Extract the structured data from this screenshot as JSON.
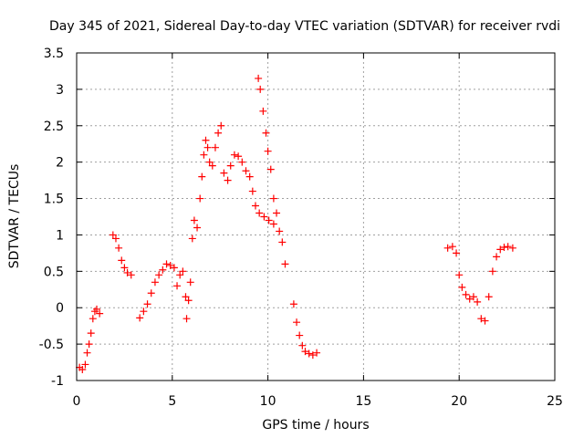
{
  "chart_data": {
    "type": "scatter",
    "title": "Day 345 of 2021, Sidereal Day-to-day VTEC variation (SDTVAR) for receiver rvdi",
    "xlabel": "GPS time / hours",
    "ylabel": "SDTVAR / TECUs",
    "xlim": [
      0,
      25
    ],
    "ylim": [
      -1,
      3.5
    ],
    "x_ticks": [
      0,
      5,
      10,
      15,
      20,
      25
    ],
    "x_tick_labels": [
      "0",
      "5",
      "10",
      "15",
      "20",
      "25"
    ],
    "y_ticks": [
      -1,
      -0.5,
      0,
      0.5,
      1,
      1.5,
      2,
      2.5,
      3,
      3.5
    ],
    "y_tick_labels": [
      "-1",
      "-0.5",
      "0",
      "0.5",
      "1",
      "1.5",
      "2",
      "2.5",
      "3",
      "3.5"
    ],
    "grid": true,
    "marker": "+",
    "color": "#ff0000",
    "series": [
      {
        "name": "rvdi SDTVAR",
        "points": [
          [
            0.15,
            -0.82
          ],
          [
            0.3,
            -0.85
          ],
          [
            0.45,
            -0.78
          ],
          [
            0.55,
            -0.62
          ],
          [
            0.65,
            -0.5
          ],
          [
            0.75,
            -0.35
          ],
          [
            0.85,
            -0.15
          ],
          [
            0.95,
            -0.05
          ],
          [
            1.05,
            -0.02
          ],
          [
            1.2,
            -0.08
          ],
          [
            1.9,
            1.0
          ],
          [
            2.05,
            0.95
          ],
          [
            2.2,
            0.82
          ],
          [
            2.35,
            0.65
          ],
          [
            2.5,
            0.55
          ],
          [
            2.65,
            0.48
          ],
          [
            2.85,
            0.45
          ],
          [
            3.3,
            -0.14
          ],
          [
            3.5,
            -0.05
          ],
          [
            3.7,
            0.05
          ],
          [
            3.9,
            0.2
          ],
          [
            4.1,
            0.35
          ],
          [
            4.3,
            0.45
          ],
          [
            4.5,
            0.52
          ],
          [
            4.7,
            0.6
          ],
          [
            4.9,
            0.58
          ],
          [
            5.1,
            0.55
          ],
          [
            5.25,
            0.3
          ],
          [
            5.4,
            0.45
          ],
          [
            5.55,
            0.5
          ],
          [
            5.7,
            0.15
          ],
          [
            5.75,
            -0.15
          ],
          [
            5.85,
            0.1
          ],
          [
            5.95,
            0.35
          ],
          [
            6.05,
            0.95
          ],
          [
            6.15,
            1.2
          ],
          [
            6.3,
            1.1
          ],
          [
            6.45,
            1.5
          ],
          [
            6.55,
            1.8
          ],
          [
            6.65,
            2.1
          ],
          [
            6.75,
            2.3
          ],
          [
            6.85,
            2.2
          ],
          [
            6.95,
            2.0
          ],
          [
            7.1,
            1.95
          ],
          [
            7.25,
            2.2
          ],
          [
            7.4,
            2.4
          ],
          [
            7.55,
            2.5
          ],
          [
            7.7,
            1.85
          ],
          [
            7.9,
            1.75
          ],
          [
            8.05,
            1.95
          ],
          [
            8.25,
            2.1
          ],
          [
            8.45,
            2.08
          ],
          [
            8.65,
            2.0
          ],
          [
            8.85,
            1.88
          ],
          [
            9.05,
            1.8
          ],
          [
            9.2,
            1.6
          ],
          [
            9.35,
            1.4
          ],
          [
            9.5,
            3.15
          ],
          [
            9.6,
            3.0
          ],
          [
            9.75,
            2.7
          ],
          [
            9.9,
            2.4
          ],
          [
            10.0,
            2.15
          ],
          [
            10.15,
            1.9
          ],
          [
            10.3,
            1.5
          ],
          [
            10.45,
            1.3
          ],
          [
            10.6,
            1.05
          ],
          [
            10.75,
            0.9
          ],
          [
            10.9,
            0.6
          ],
          [
            9.55,
            1.3
          ],
          [
            9.8,
            1.25
          ],
          [
            10.05,
            1.2
          ],
          [
            10.3,
            1.15
          ],
          [
            11.35,
            0.05
          ],
          [
            11.5,
            -0.2
          ],
          [
            11.65,
            -0.38
          ],
          [
            11.8,
            -0.52
          ],
          [
            11.95,
            -0.6
          ],
          [
            12.15,
            -0.63
          ],
          [
            12.35,
            -0.65
          ],
          [
            12.55,
            -0.62
          ],
          [
            19.4,
            0.82
          ],
          [
            19.65,
            0.84
          ],
          [
            19.85,
            0.75
          ],
          [
            20.0,
            0.45
          ],
          [
            20.15,
            0.28
          ],
          [
            20.35,
            0.18
          ],
          [
            20.55,
            0.12
          ],
          [
            20.75,
            0.15
          ],
          [
            20.95,
            0.08
          ],
          [
            21.15,
            -0.15
          ],
          [
            21.35,
            -0.18
          ],
          [
            21.55,
            0.15
          ],
          [
            21.75,
            0.5
          ],
          [
            21.95,
            0.7
          ],
          [
            22.15,
            0.8
          ],
          [
            22.35,
            0.83
          ],
          [
            22.55,
            0.84
          ],
          [
            22.8,
            0.82
          ]
        ]
      }
    ]
  }
}
